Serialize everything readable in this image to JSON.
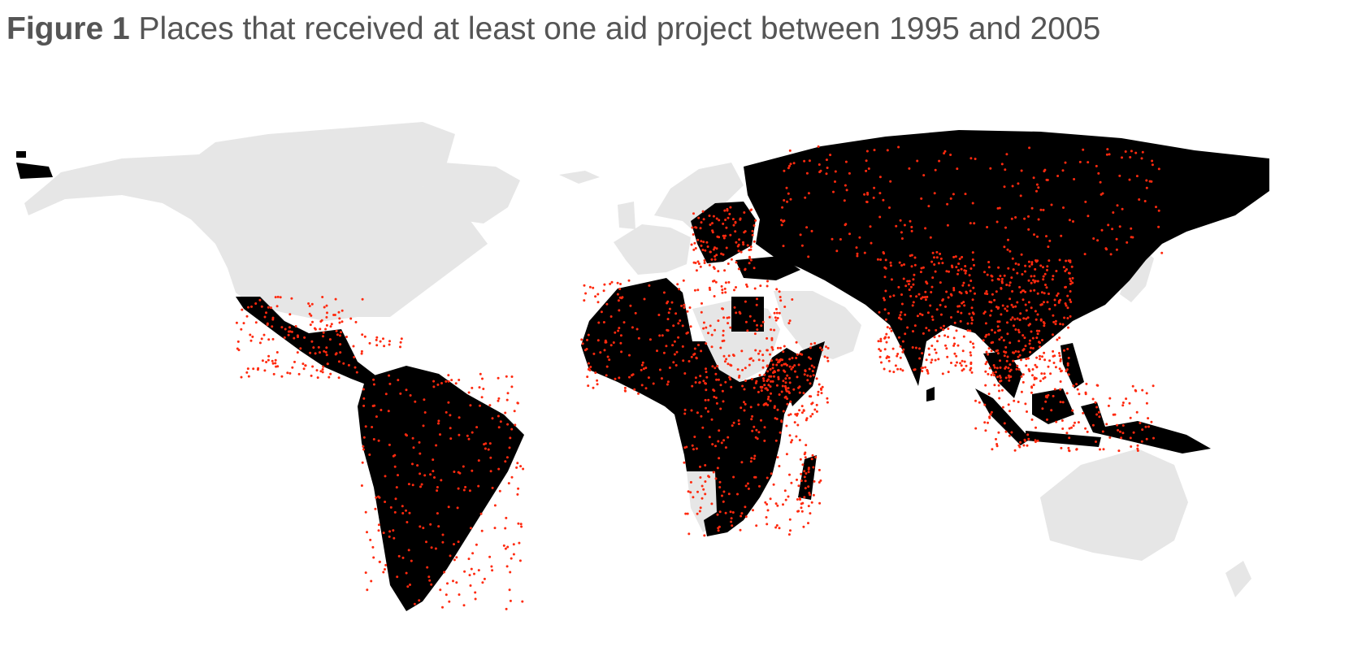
{
  "figure": {
    "label": "Figure 1",
    "caption": "Places that received at least one aid project between 1995 and 2005"
  },
  "map": {
    "colors": {
      "ocean": "#ffffff",
      "land_no_aid": "#e6e6e6",
      "recipient_country": "#000000",
      "aid_project": "#ff2a0f"
    }
  }
}
